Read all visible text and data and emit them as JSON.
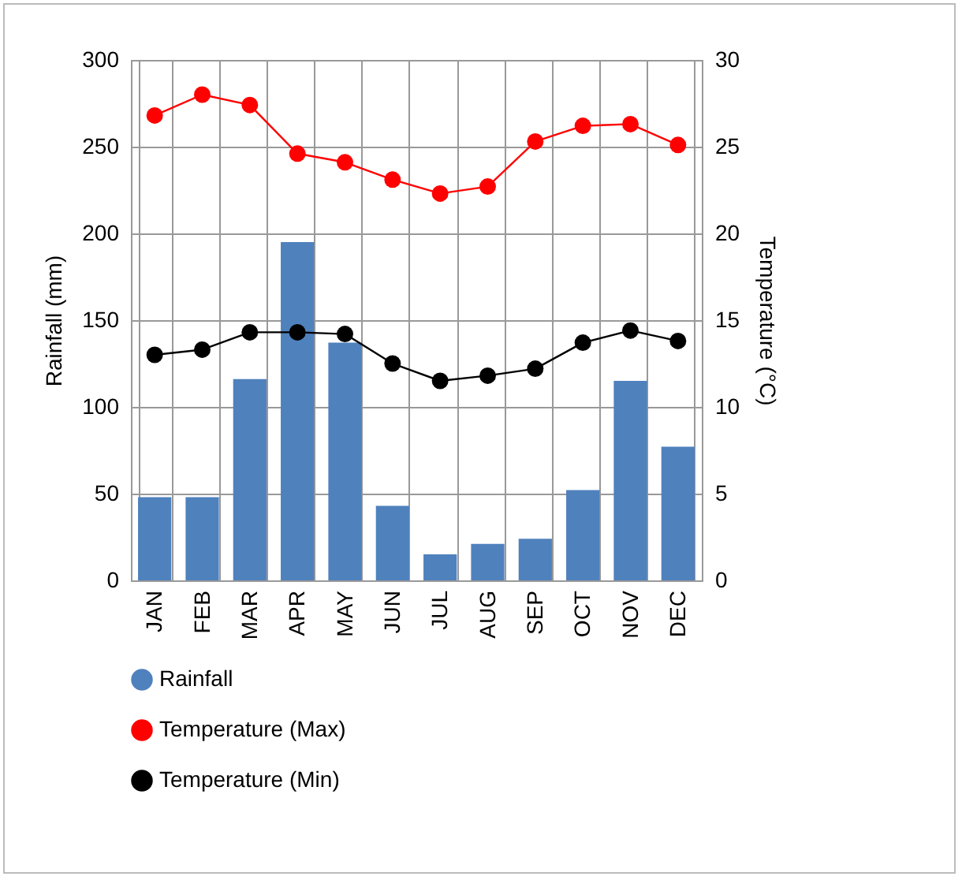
{
  "chart_data": {
    "type": "bar",
    "categories": [
      "JAN",
      "FEB",
      "MAR",
      "APR",
      "MAY",
      "JUN",
      "JUL",
      "AUG",
      "SEP",
      "OCT",
      "NOV",
      "DEC"
    ],
    "ylabel": "Rainfall (mm)",
    "y2label": "Temperature (°C)",
    "ylim": [
      0,
      300
    ],
    "yticks": [
      0,
      50,
      100,
      150,
      200,
      250,
      300
    ],
    "y2lim": [
      0,
      30
    ],
    "y2ticks": [
      0,
      5,
      10,
      15,
      20,
      25,
      30
    ],
    "grid": true,
    "legend": "bottom",
    "marker": "circle",
    "line_style": "solid",
    "series": [
      {
        "name": "Rainfall",
        "color": "#4f81bd",
        "values": [
          48,
          48,
          116,
          195,
          137,
          43,
          15,
          21,
          24,
          52,
          115,
          77
        ]
      },
      {
        "name": "Temperature  (Max)",
        "type": "line",
        "axis": "y2",
        "color": "#ff0000",
        "values": [
          26.8,
          28.0,
          27.4,
          24.6,
          24.1,
          23.1,
          22.3,
          22.7,
          25.3,
          26.2,
          26.3,
          25.1
        ]
      },
      {
        "name": "Temperature  (Min)",
        "type": "line",
        "axis": "y2",
        "color": "#000000",
        "values": [
          13.0,
          13.3,
          14.3,
          14.3,
          14.2,
          12.5,
          11.5,
          11.8,
          12.2,
          13.7,
          14.4,
          13.8
        ]
      }
    ]
  }
}
